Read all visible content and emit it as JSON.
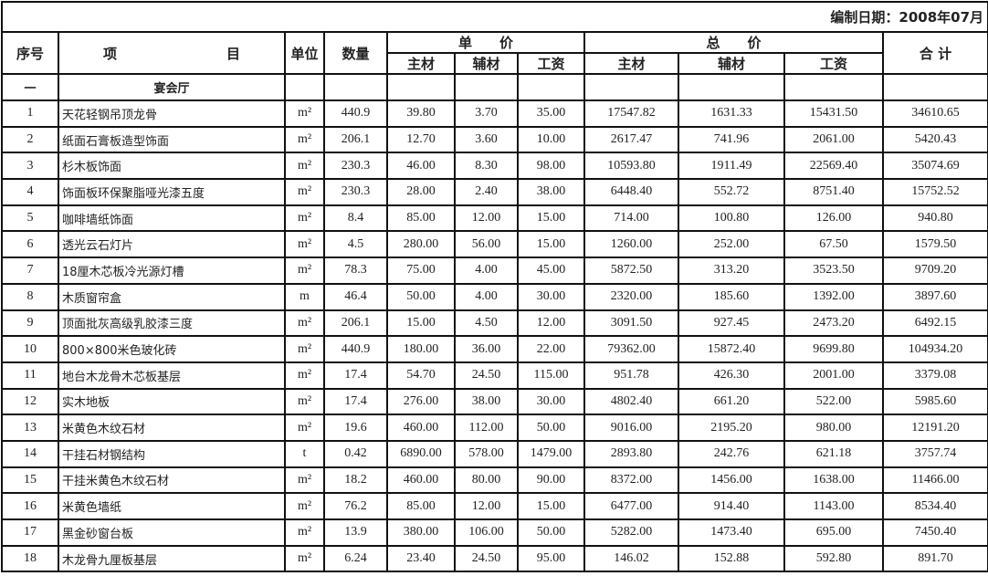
{
  "title": "编制日期：2008年07月",
  "headers": {
    "seq": "序号",
    "item": "项　　　　　　　　目",
    "unit": "单位",
    "qty": "数量",
    "unit_price": "单　　价",
    "total_price": "总　　价",
    "sum": "合 计",
    "main": "主材",
    "aux": "辅材",
    "labor": "工资"
  },
  "section": {
    "seq": "一",
    "name": "宴会厅"
  },
  "rows": [
    {
      "seq": "1",
      "name": "天花轻钢吊顶龙骨",
      "unit": "m²",
      "qty": "440.9",
      "up_main": "39.80",
      "up_aux": "3.70",
      "up_labor": "35.00",
      "tp_main": "17547.82",
      "tp_aux": "1631.33",
      "tp_labor": "15431.50",
      "total": "34610.65"
    },
    {
      "seq": "2",
      "name": "纸面石膏板造型饰面",
      "unit": "m²",
      "qty": "206.1",
      "up_main": "12.70",
      "up_aux": "3.60",
      "up_labor": "10.00",
      "tp_main": "2617.47",
      "tp_aux": "741.96",
      "tp_labor": "2061.00",
      "total": "5420.43"
    },
    {
      "seq": "3",
      "name": "杉木板饰面",
      "unit": "m²",
      "qty": "230.3",
      "up_main": "46.00",
      "up_aux": "8.30",
      "up_labor": "98.00",
      "tp_main": "10593.80",
      "tp_aux": "1911.49",
      "tp_labor": "22569.40",
      "total": "35074.69"
    },
    {
      "seq": "4",
      "name": "饰面板环保聚脂哑光漆五度",
      "unit": "m²",
      "qty": "230.3",
      "up_main": "28.00",
      "up_aux": "2.40",
      "up_labor": "38.00",
      "tp_main": "6448.40",
      "tp_aux": "552.72",
      "tp_labor": "8751.40",
      "total": "15752.52"
    },
    {
      "seq": "5",
      "name": "咖啡墙纸饰面",
      "unit": "m²",
      "qty": "8.4",
      "up_main": "85.00",
      "up_aux": "12.00",
      "up_labor": "15.00",
      "tp_main": "714.00",
      "tp_aux": "100.80",
      "tp_labor": "126.00",
      "total": "940.80"
    },
    {
      "seq": "6",
      "name": "透光云石灯片",
      "unit": "m²",
      "qty": "4.5",
      "up_main": "280.00",
      "up_aux": "56.00",
      "up_labor": "15.00",
      "tp_main": "1260.00",
      "tp_aux": "252.00",
      "tp_labor": "67.50",
      "total": "1579.50"
    },
    {
      "seq": "7",
      "name": "18厘木芯板冷光源灯槽",
      "unit": "m²",
      "qty": "78.3",
      "up_main": "75.00",
      "up_aux": "4.00",
      "up_labor": "45.00",
      "tp_main": "5872.50",
      "tp_aux": "313.20",
      "tp_labor": "3523.50",
      "total": "9709.20"
    },
    {
      "seq": "8",
      "name": "木质窗帘盒",
      "unit": "m",
      "qty": "46.4",
      "up_main": "50.00",
      "up_aux": "4.00",
      "up_labor": "30.00",
      "tp_main": "2320.00",
      "tp_aux": "185.60",
      "tp_labor": "1392.00",
      "total": "3897.60"
    },
    {
      "seq": "9",
      "name": "顶面批灰高级乳胶漆三度",
      "unit": "m²",
      "qty": "206.1",
      "up_main": "15.00",
      "up_aux": "4.50",
      "up_labor": "12.00",
      "tp_main": "3091.50",
      "tp_aux": "927.45",
      "tp_labor": "2473.20",
      "total": "6492.15"
    },
    {
      "seq": "10",
      "name": "800×800米色玻化砖",
      "unit": "m²",
      "qty": "440.9",
      "up_main": "180.00",
      "up_aux": "36.00",
      "up_labor": "22.00",
      "tp_main": "79362.00",
      "tp_aux": "15872.40",
      "tp_labor": "9699.80",
      "total": "104934.20"
    },
    {
      "seq": "11",
      "name": "地台木龙骨木芯板基层",
      "unit": "m²",
      "qty": "17.4",
      "up_main": "54.70",
      "up_aux": "24.50",
      "up_labor": "115.00",
      "tp_main": "951.78",
      "tp_aux": "426.30",
      "tp_labor": "2001.00",
      "total": "3379.08"
    },
    {
      "seq": "12",
      "name": "实木地板",
      "unit": "m²",
      "qty": "17.4",
      "up_main": "276.00",
      "up_aux": "38.00",
      "up_labor": "30.00",
      "tp_main": "4802.40",
      "tp_aux": "661.20",
      "tp_labor": "522.00",
      "total": "5985.60"
    },
    {
      "seq": "13",
      "name": "米黄色木纹石材",
      "unit": "m²",
      "qty": "19.6",
      "up_main": "460.00",
      "up_aux": "112.00",
      "up_labor": "50.00",
      "tp_main": "9016.00",
      "tp_aux": "2195.20",
      "tp_labor": "980.00",
      "total": "12191.20"
    },
    {
      "seq": "14",
      "name": "干挂石材钢结构",
      "unit": "t",
      "qty": "0.42",
      "up_main": "6890.00",
      "up_aux": "578.00",
      "up_labor": "1479.00",
      "tp_main": "2893.80",
      "tp_aux": "242.76",
      "tp_labor": "621.18",
      "total": "3757.74"
    },
    {
      "seq": "15",
      "name": "干挂米黄色木纹石材",
      "unit": "m²",
      "qty": "18.2",
      "up_main": "460.00",
      "up_aux": "80.00",
      "up_labor": "90.00",
      "tp_main": "8372.00",
      "tp_aux": "1456.00",
      "tp_labor": "1638.00",
      "total": "11466.00"
    },
    {
      "seq": "16",
      "name": "米黄色墙纸",
      "unit": "m²",
      "qty": "76.2",
      "up_main": "85.00",
      "up_aux": "12.00",
      "up_labor": "15.00",
      "tp_main": "6477.00",
      "tp_aux": "914.40",
      "tp_labor": "1143.00",
      "total": "8534.40"
    },
    {
      "seq": "17",
      "name": "黑金砂窗台板",
      "unit": "m²",
      "qty": "13.9",
      "up_main": "380.00",
      "up_aux": "106.00",
      "up_labor": "50.00",
      "tp_main": "5282.00",
      "tp_aux": "1473.40",
      "tp_labor": "695.00",
      "total": "7450.40"
    },
    {
      "seq": "18",
      "name": "木龙骨九厘板基层",
      "unit": "m²",
      "qty": "6.24",
      "up_main": "23.40",
      "up_aux": "24.50",
      "up_labor": "95.00",
      "tp_main": "146.02",
      "tp_aux": "152.88",
      "tp_labor": "592.80",
      "total": "891.70"
    }
  ]
}
